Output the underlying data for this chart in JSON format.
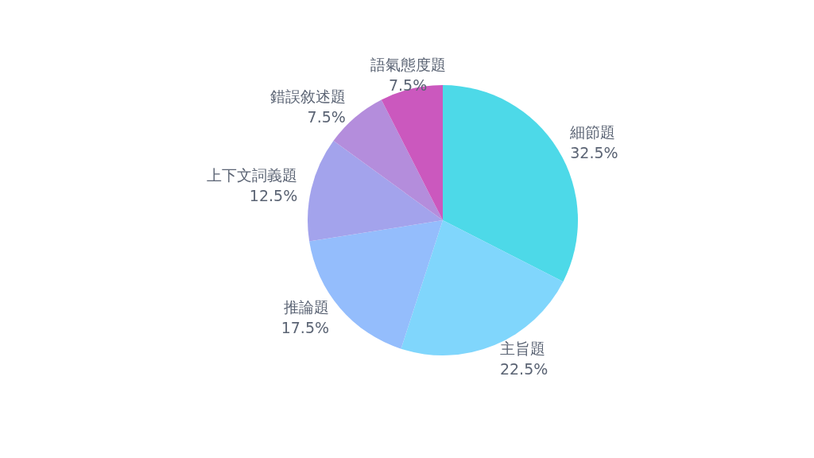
{
  "chart_data": {
    "type": "pie",
    "categories": [
      "細節題",
      "主旨題",
      "推論題",
      "上下文詞義題",
      "錯誤敘述題",
      "語氣態度題"
    ],
    "values": [
      32.5,
      22.5,
      17.5,
      12.5,
      7.5,
      7.5
    ],
    "value_labels": [
      "32.5%",
      "22.5%",
      "17.5%",
      "12.5%",
      "7.5%",
      "7.5%"
    ],
    "colors": [
      "#4dd9e8",
      "#80d6fc",
      "#94bdfc",
      "#a3a3ec",
      "#b48ddc",
      "#cb58be"
    ]
  }
}
